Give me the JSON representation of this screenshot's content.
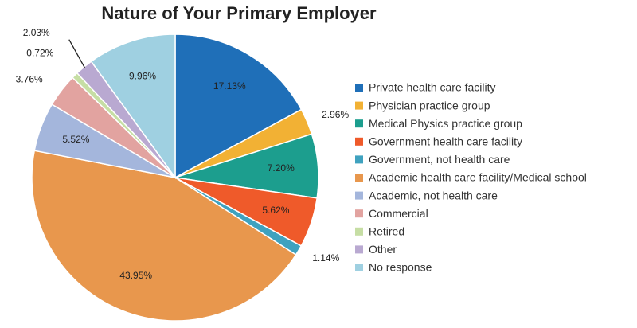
{
  "chart_data": {
    "type": "pie",
    "title": "Nature of Your Primary Employer",
    "categories": [
      "Private health care facility",
      "Physician practice group",
      "Medical Physics practice group",
      "Government health care facility",
      "Government, not health care",
      "Academic health care facility/Medical school",
      "Academic, not health care",
      "Commercial",
      "Retired",
      "Other",
      "No response"
    ],
    "values": [
      17.13,
      2.96,
      7.2,
      5.62,
      1.14,
      43.95,
      5.52,
      3.76,
      0.72,
      2.03,
      9.96
    ],
    "value_labels": [
      "17.13%",
      "2.96%",
      "7.20%",
      "5.62%",
      "1.14%",
      "43.95%",
      "5.52%",
      "3.76%",
      "0.72%",
      "2.03%",
      "9.96%"
    ],
    "colors": [
      "#1f6fb8",
      "#f2b134",
      "#1c9e8e",
      "#ef5a2a",
      "#3fa2bf",
      "#e8974d",
      "#a4b6dc",
      "#e2a3a0",
      "#c6dea4",
      "#b9a9d1",
      "#9fd0e1"
    ],
    "legend": "right"
  }
}
